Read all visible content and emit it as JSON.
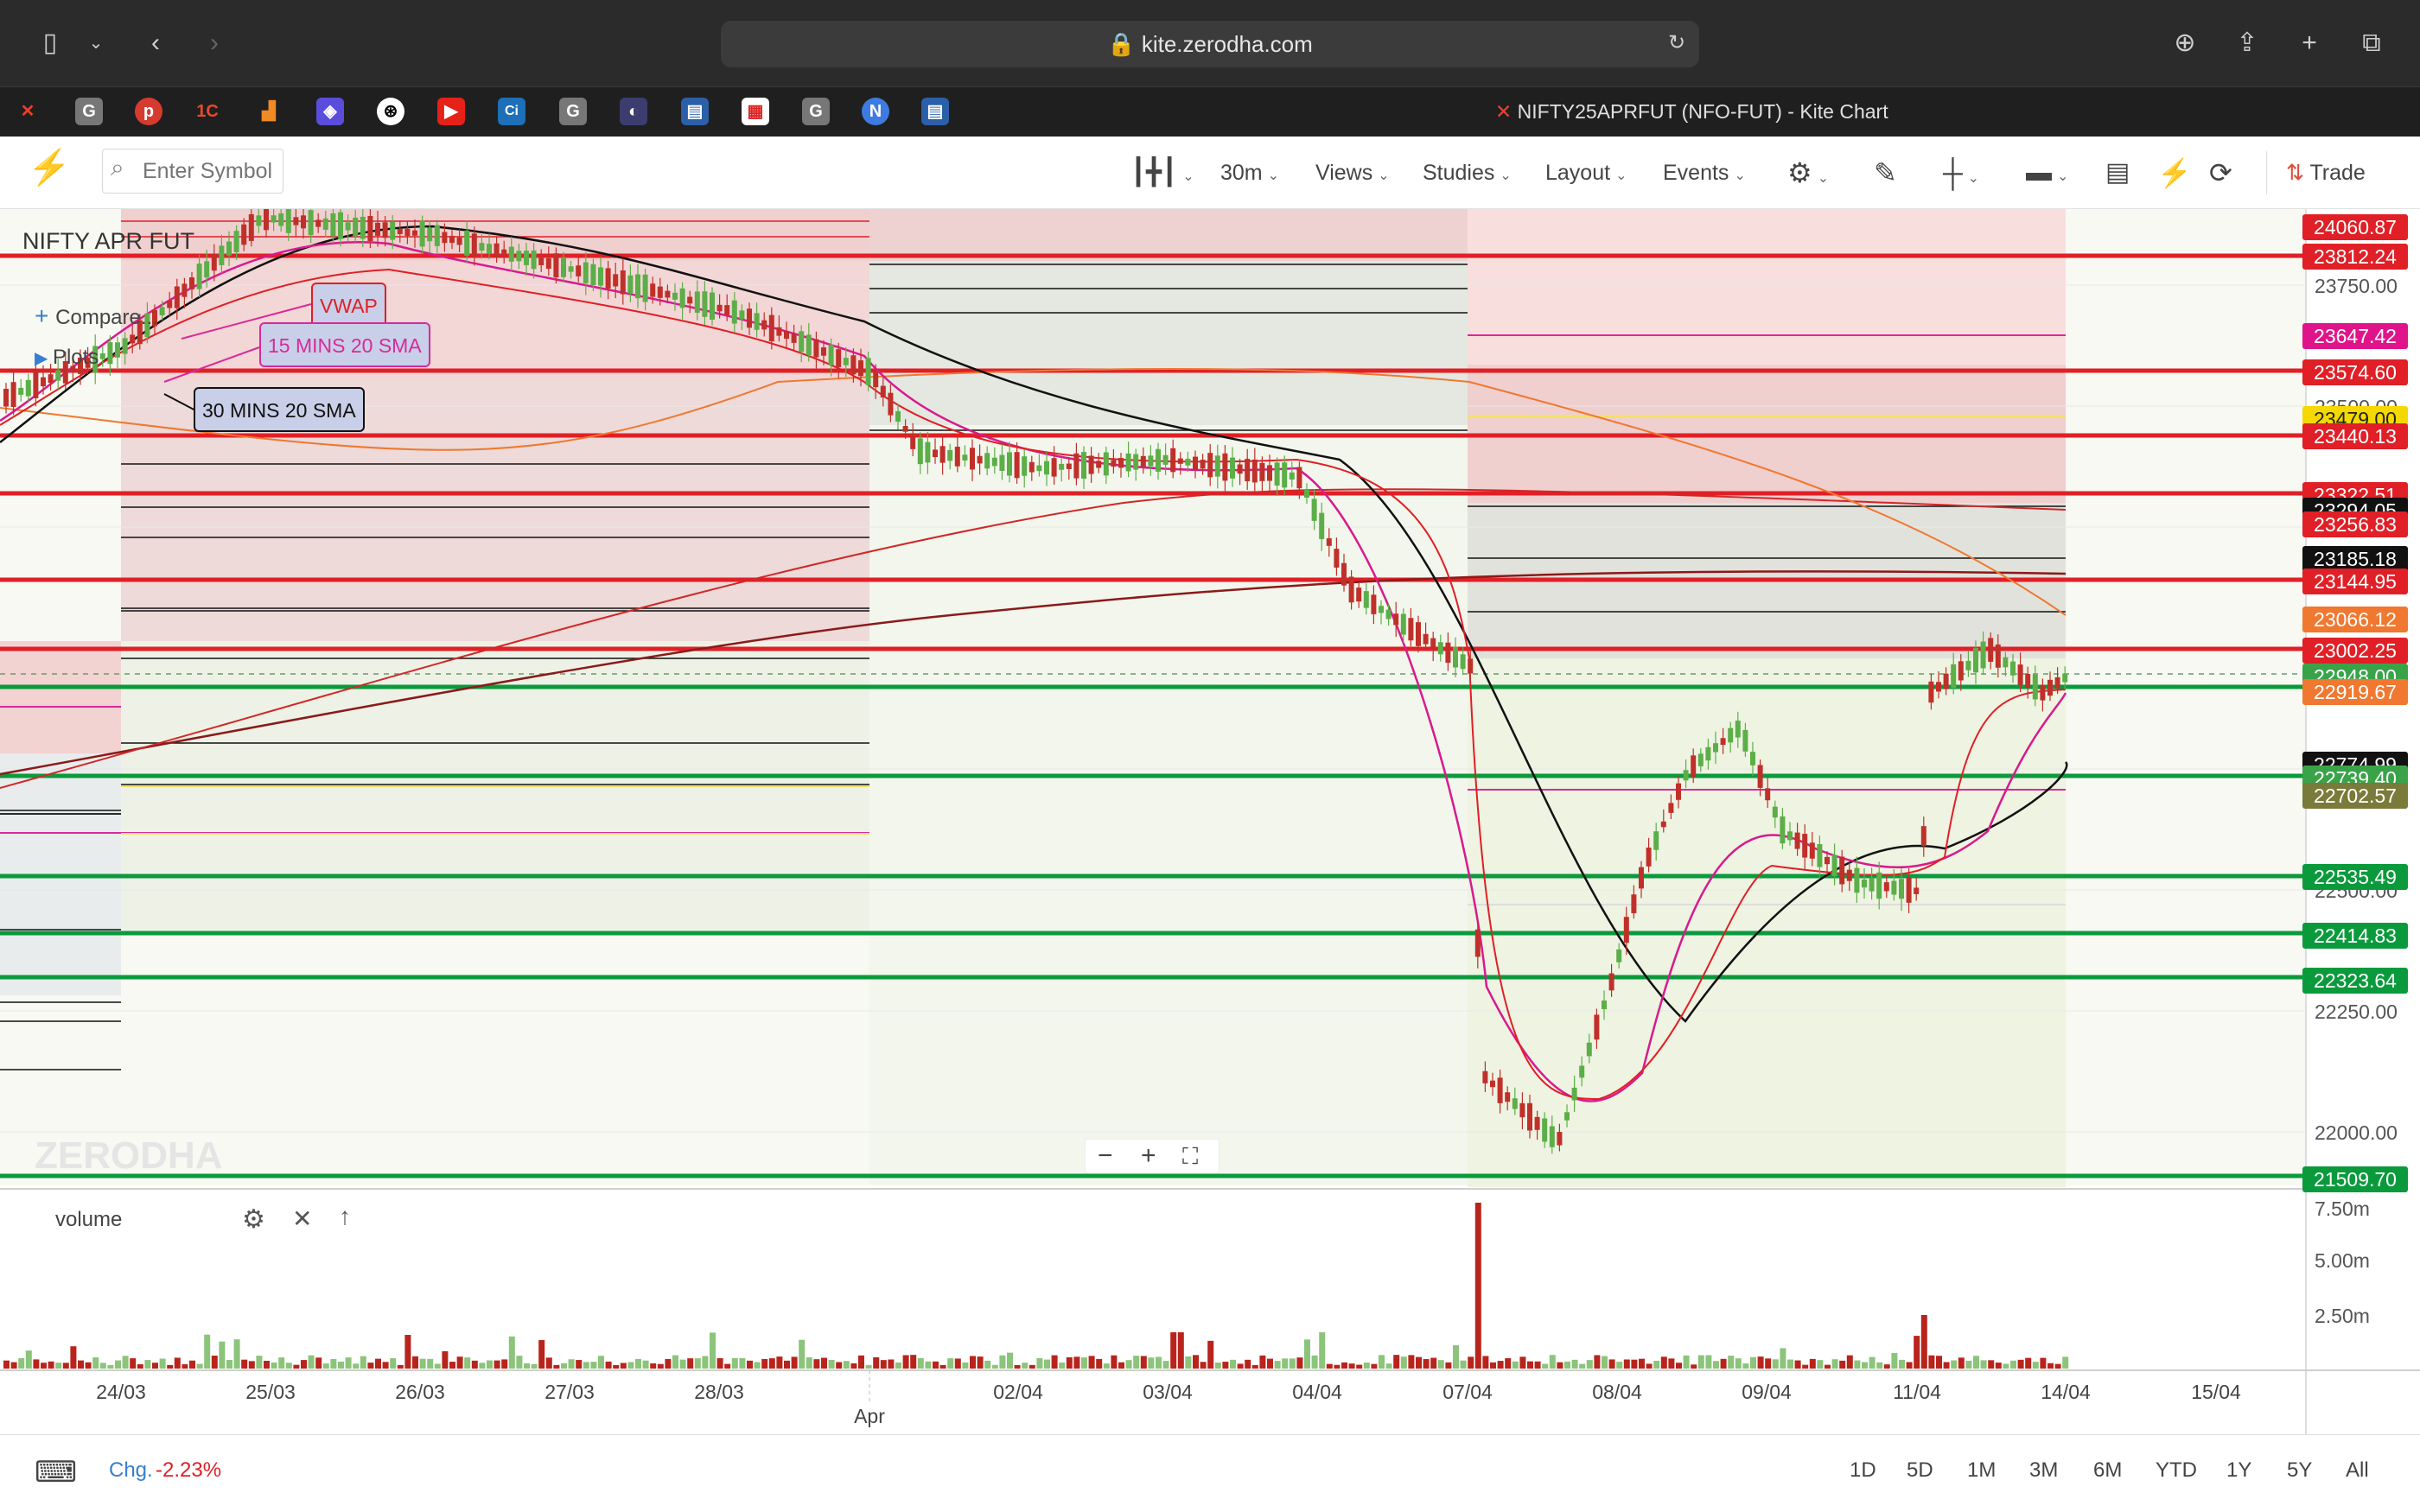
{
  "browser": {
    "url": "kite.zerodha.com",
    "tab_title": "NIFTY25APRFUT (NFO-FUT) - Kite Chart"
  },
  "toolbar": {
    "search_placeholder": "Enter Symbol",
    "interval": "30m",
    "views": "Views",
    "studies": "Studies",
    "layout": "Layout",
    "events": "Events",
    "trade": "Trade"
  },
  "chart": {
    "symbol_title": "NIFTY APR FUT",
    "compare": "Compare...",
    "plots": "Plots",
    "annotations": {
      "vwap": "VWAP",
      "sma15": "15 MINS 20 SMA",
      "sma30": "30 MINS 20 SMA"
    },
    "watermark": "ZERODHA",
    "volume_label": "volume",
    "change_label": "Chg.",
    "change_value": "-2.23%",
    "price_tags": [
      {
        "label": "24060.87",
        "color": "#e01f26"
      },
      {
        "label": "23812.24",
        "color": "#e01f26"
      },
      {
        "label": "23647.42",
        "color": "#e0148a"
      },
      {
        "label": "23574.60",
        "color": "#e01f26"
      },
      {
        "label": "23479.00",
        "color": "#f5d800"
      },
      {
        "label": "23440.13",
        "color": "#e01f26"
      },
      {
        "label": "23322.51",
        "color": "#e01f26"
      },
      {
        "label": "23294.05",
        "color": "#111111"
      },
      {
        "label": "23256.83",
        "color": "#e01f26"
      },
      {
        "label": "23185.18",
        "color": "#111111"
      },
      {
        "label": "23144.95",
        "color": "#e01f26"
      },
      {
        "label": "23066.12",
        "color": "#f07830"
      },
      {
        "label": "23002.25",
        "color": "#e01f26"
      },
      {
        "label": "22948.00",
        "color": "#3aa34a"
      },
      {
        "label": "22919.67",
        "color": "#f07830"
      },
      {
        "label": "22774.99",
        "color": "#111111"
      },
      {
        "label": "22739.40",
        "color": "#3aa34a"
      },
      {
        "label": "22702.57",
        "color": "#7a7a3a"
      },
      {
        "label": "22535.49",
        "color": "#0a9a3c"
      },
      {
        "label": "22414.83",
        "color": "#0a9a3c"
      },
      {
        "label": "22323.64",
        "color": "#0a9a3c"
      },
      {
        "label": "21509.70",
        "color": "#0a9a3c"
      }
    ],
    "price_axis": [
      "23750.00",
      "23500.00",
      "22500.00",
      "22250.00",
      "22000.00"
    ],
    "volume_axis": [
      "7.50m",
      "5.00m",
      "2.50m"
    ],
    "dates": [
      "24/03",
      "25/03",
      "26/03",
      "27/03",
      "28/03",
      "Apr",
      "02/04",
      "03/04",
      "04/04",
      "07/04",
      "08/04",
      "09/04",
      "11/04",
      "14/04",
      "15/04"
    ]
  },
  "ranges": [
    "1D",
    "5D",
    "1M",
    "3M",
    "6M",
    "YTD",
    "1Y",
    "5Y",
    "All"
  ]
}
